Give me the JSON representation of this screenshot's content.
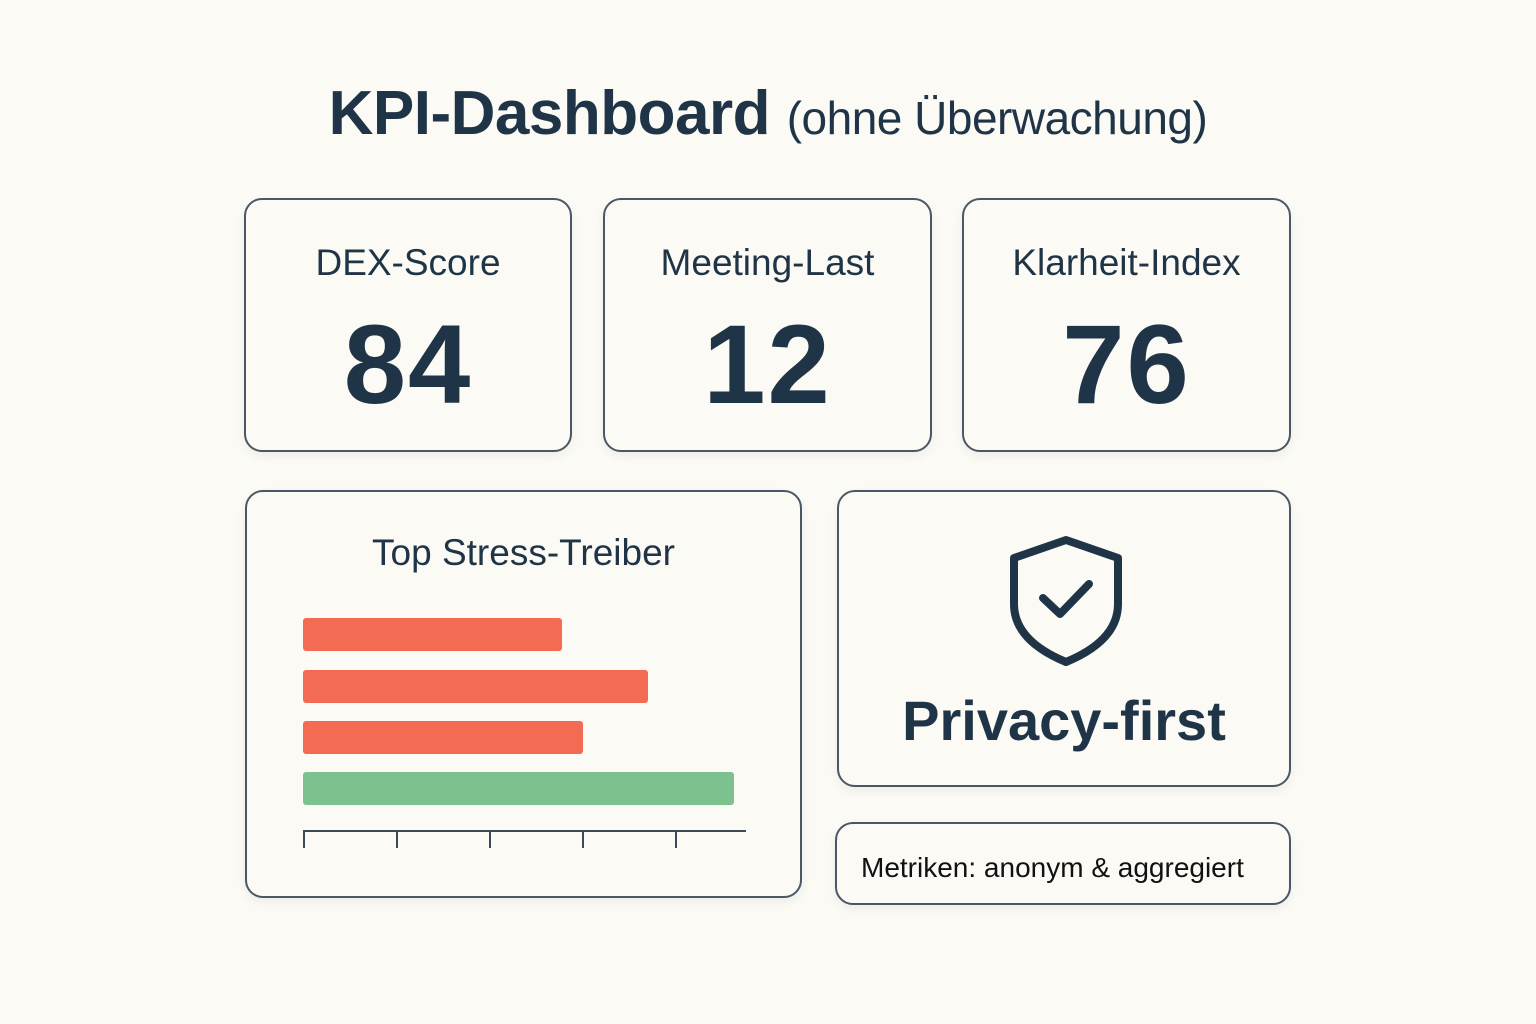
{
  "header": {
    "title": "KPI-Dashboard",
    "subtitle": "(ohne Überwachung)"
  },
  "kpis": [
    {
      "label": "DEX-Score",
      "value": "84"
    },
    {
      "label": "Meeting-Last",
      "value": "12"
    },
    {
      "label": "Klarheit-Index",
      "value": "76"
    }
  ],
  "stress_panel": {
    "title": "Top Stress-Treiber"
  },
  "privacy_panel": {
    "icon": "shield-check-icon",
    "label": "Privacy-first"
  },
  "note": {
    "text": "Metriken: anonym & aggregiert"
  },
  "colors": {
    "text": "#1f3547",
    "bar_negative": "#f26b52",
    "bar_positive": "#7dc18f",
    "border": "#4a5866",
    "background": "#fbfaf5"
  },
  "chart_data": {
    "type": "bar",
    "orientation": "horizontal",
    "title": "Top Stress-Treiber",
    "categories": [
      "",
      "",
      "",
      ""
    ],
    "values": [
      60,
      80,
      65,
      100
    ],
    "colors": [
      "#f26b52",
      "#f26b52",
      "#f26b52",
      "#7dc18f"
    ],
    "xlabel": "",
    "ylabel": "",
    "xlim": [
      0,
      102
    ],
    "x_ticks": 5,
    "tick_labels": [],
    "grid": false,
    "legend": null
  }
}
